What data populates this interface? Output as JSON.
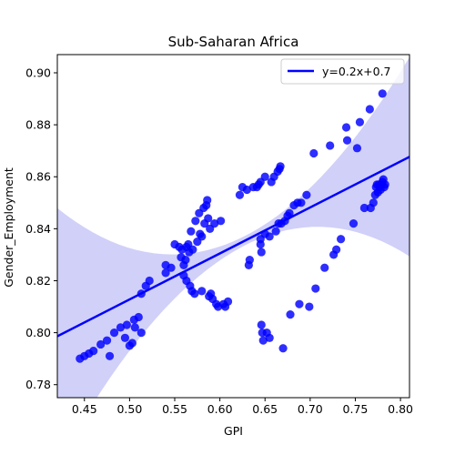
{
  "chart_data": {
    "type": "scatter",
    "title": "Sub-Saharan Africa",
    "xlabel": "GPI",
    "ylabel": "Gender_Employment",
    "xlim": [
      0.42,
      0.81
    ],
    "ylim": [
      0.775,
      0.907
    ],
    "xticks": [
      "0.45",
      "0.50",
      "0.55",
      "0.60",
      "0.65",
      "0.70",
      "0.75",
      "0.80"
    ],
    "yticks": [
      "0.78",
      "0.80",
      "0.82",
      "0.84",
      "0.86",
      "0.88",
      "0.90"
    ],
    "grid": false,
    "legend": {
      "position": "top-right",
      "entries": [
        "y=0.2x+0.7"
      ]
    },
    "colors": {
      "points": "#0000ff",
      "line": "#0000ff",
      "band": "#c8c8f8"
    },
    "regression": {
      "slope": 0.177,
      "intercept": 0.7243,
      "label": "y=0.2x+0.7"
    },
    "points": [
      [
        0.445,
        0.79
      ],
      [
        0.45,
        0.791
      ],
      [
        0.455,
        0.792
      ],
      [
        0.46,
        0.793
      ],
      [
        0.468,
        0.7955
      ],
      [
        0.475,
        0.797
      ],
      [
        0.478,
        0.791
      ],
      [
        0.483,
        0.8
      ],
      [
        0.49,
        0.802
      ],
      [
        0.495,
        0.798
      ],
      [
        0.497,
        0.803
      ],
      [
        0.5,
        0.795
      ],
      [
        0.503,
        0.796
      ],
      [
        0.505,
        0.805
      ],
      [
        0.506,
        0.802
      ],
      [
        0.51,
        0.806
      ],
      [
        0.513,
        0.8
      ],
      [
        0.513,
        0.815
      ],
      [
        0.518,
        0.818
      ],
      [
        0.522,
        0.82
      ],
      [
        0.54,
        0.823
      ],
      [
        0.54,
        0.826
      ],
      [
        0.546,
        0.825
      ],
      [
        0.55,
        0.834
      ],
      [
        0.555,
        0.833
      ],
      [
        0.557,
        0.829
      ],
      [
        0.558,
        0.832
      ],
      [
        0.56,
        0.826
      ],
      [
        0.56,
        0.822
      ],
      [
        0.562,
        0.828
      ],
      [
        0.563,
        0.82
      ],
      [
        0.563,
        0.833
      ],
      [
        0.565,
        0.834
      ],
      [
        0.566,
        0.831
      ],
      [
        0.567,
        0.818
      ],
      [
        0.568,
        0.839
      ],
      [
        0.569,
        0.816
      ],
      [
        0.57,
        0.832
      ],
      [
        0.572,
        0.815
      ],
      [
        0.573,
        0.843
      ],
      [
        0.575,
        0.835
      ],
      [
        0.577,
        0.846
      ],
      [
        0.578,
        0.838
      ],
      [
        0.58,
        0.837
      ],
      [
        0.58,
        0.816
      ],
      [
        0.582,
        0.848
      ],
      [
        0.583,
        0.842
      ],
      [
        0.585,
        0.849
      ],
      [
        0.586,
        0.851
      ],
      [
        0.587,
        0.844
      ],
      [
        0.588,
        0.814
      ],
      [
        0.589,
        0.84
      ],
      [
        0.59,
        0.815
      ],
      [
        0.592,
        0.813
      ],
      [
        0.594,
        0.842
      ],
      [
        0.596,
        0.811
      ],
      [
        0.598,
        0.81
      ],
      [
        0.601,
        0.843
      ],
      [
        0.604,
        0.811
      ],
      [
        0.606,
        0.81
      ],
      [
        0.609,
        0.812
      ],
      [
        0.622,
        0.853
      ],
      [
        0.625,
        0.856
      ],
      [
        0.63,
        0.855
      ],
      [
        0.632,
        0.826
      ],
      [
        0.633,
        0.828
      ],
      [
        0.637,
        0.856
      ],
      [
        0.641,
        0.856
      ],
      [
        0.643,
        0.857
      ],
      [
        0.645,
        0.858
      ],
      [
        0.645,
        0.836
      ],
      [
        0.645,
        0.834
      ],
      [
        0.646,
        0.831
      ],
      [
        0.646,
        0.803
      ],
      [
        0.647,
        0.8
      ],
      [
        0.648,
        0.797
      ],
      [
        0.65,
        0.86
      ],
      [
        0.65,
        0.838
      ],
      [
        0.652,
        0.8
      ],
      [
        0.655,
        0.837
      ],
      [
        0.655,
        0.798
      ],
      [
        0.657,
        0.858
      ],
      [
        0.66,
        0.86
      ],
      [
        0.662,
        0.839
      ],
      [
        0.664,
        0.862
      ],
      [
        0.665,
        0.842
      ],
      [
        0.666,
        0.863
      ],
      [
        0.667,
        0.864
      ],
      [
        0.668,
        0.842
      ],
      [
        0.67,
        0.794
      ],
      [
        0.672,
        0.843
      ],
      [
        0.675,
        0.845
      ],
      [
        0.677,
        0.846
      ],
      [
        0.678,
        0.807
      ],
      [
        0.682,
        0.849
      ],
      [
        0.686,
        0.85
      ],
      [
        0.688,
        0.811
      ],
      [
        0.69,
        0.85
      ],
      [
        0.696,
        0.853
      ],
      [
        0.699,
        0.81
      ],
      [
        0.704,
        0.869
      ],
      [
        0.706,
        0.817
      ],
      [
        0.716,
        0.825
      ],
      [
        0.722,
        0.872
      ],
      [
        0.726,
        0.83
      ],
      [
        0.729,
        0.832
      ],
      [
        0.734,
        0.836
      ],
      [
        0.74,
        0.879
      ],
      [
        0.741,
        0.874
      ],
      [
        0.748,
        0.842
      ],
      [
        0.752,
        0.871
      ],
      [
        0.755,
        0.881
      ],
      [
        0.76,
        0.848
      ],
      [
        0.766,
        0.886
      ],
      [
        0.767,
        0.848
      ],
      [
        0.77,
        0.85
      ],
      [
        0.772,
        0.853
      ],
      [
        0.773,
        0.856
      ],
      [
        0.774,
        0.857
      ],
      [
        0.775,
        0.854
      ],
      [
        0.776,
        0.857
      ],
      [
        0.777,
        0.856
      ],
      [
        0.778,
        0.855
      ],
      [
        0.779,
        0.857
      ],
      [
        0.78,
        0.892
      ],
      [
        0.78,
        0.858
      ],
      [
        0.781,
        0.859
      ],
      [
        0.782,
        0.856
      ],
      [
        0.783,
        0.857
      ]
    ]
  }
}
